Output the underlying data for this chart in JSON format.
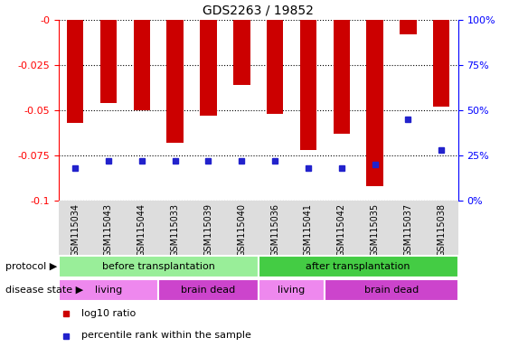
{
  "title": "GDS2263 / 19852",
  "samples": [
    "GSM115034",
    "GSM115043",
    "GSM115044",
    "GSM115033",
    "GSM115039",
    "GSM115040",
    "GSM115036",
    "GSM115041",
    "GSM115042",
    "GSM115035",
    "GSM115037",
    "GSM115038"
  ],
  "log10_ratio": [
    -0.057,
    -0.046,
    -0.05,
    -0.068,
    -0.053,
    -0.036,
    -0.052,
    -0.072,
    -0.063,
    -0.092,
    -0.008,
    -0.048
  ],
  "percentile_rank": [
    18,
    22,
    22,
    22,
    22,
    22,
    22,
    18,
    18,
    20,
    45,
    28
  ],
  "ylim_left": [
    -0.1,
    0.0
  ],
  "ylim_right": [
    0,
    100
  ],
  "yticks_left": [
    0.0,
    -0.025,
    -0.05,
    -0.075,
    -0.1
  ],
  "yticks_right": [
    0,
    25,
    50,
    75,
    100
  ],
  "bar_color": "#cc0000",
  "marker_color": "#2222cc",
  "protocol_groups": [
    {
      "label": "before transplantation",
      "start": 0,
      "end": 6,
      "color": "#99ee99"
    },
    {
      "label": "after transplantation",
      "start": 6,
      "end": 12,
      "color": "#44cc44"
    }
  ],
  "disease_groups": [
    {
      "label": "living",
      "start": 0,
      "end": 3,
      "color": "#ee88ee"
    },
    {
      "label": "brain dead",
      "start": 3,
      "end": 6,
      "color": "#cc44cc"
    },
    {
      "label": "living",
      "start": 6,
      "end": 8,
      "color": "#ee88ee"
    },
    {
      "label": "brain dead",
      "start": 8,
      "end": 12,
      "color": "#cc44cc"
    }
  ],
  "protocol_label": "protocol",
  "disease_label": "disease state",
  "legend_items": [
    "log10 ratio",
    "percentile rank within the sample"
  ],
  "legend_colors": [
    "#cc0000",
    "#2222cc"
  ],
  "xtick_bg_color": "#dddddd",
  "background_color": "#ffffff"
}
